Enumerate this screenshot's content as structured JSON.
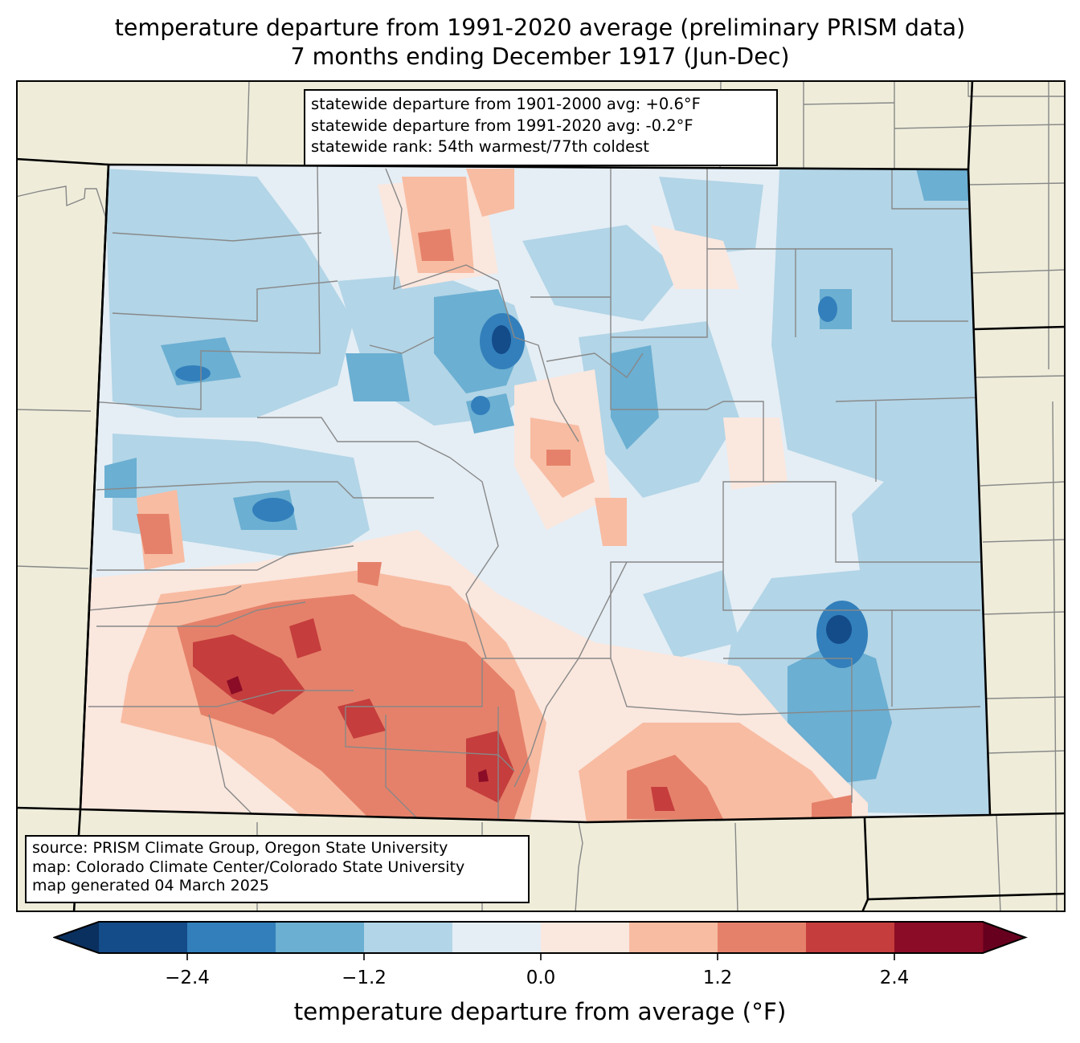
{
  "title": {
    "line1": "temperature departure from 1991-2020 average (preliminary PRISM data)",
    "line2": "7 months ending December 1917 (Jun-Dec)"
  },
  "stats_box": {
    "line1": "statewide departure from 1901-2000 avg: +0.6°F",
    "line2": "statewide departure from 1991-2020 avg: -0.2°F",
    "line3": "statewide rank: 54th warmest/77th coldest"
  },
  "source_box": {
    "line1": "source: PRISM Climate Group, Oregon State University",
    "line2": "map: Colorado Climate Center/Colorado State University",
    "line3": "map generated 04 March 2025"
  },
  "colors": {
    "land_outside": "#efedda",
    "county_line": "#888888",
    "state_line": "#000000"
  },
  "chart_data": {
    "type": "heatmap",
    "title": "temperature departure from 1991-2020 average (preliminary PRISM data)",
    "subtitle": "7 months ending December 1917 (Jun-Dec)",
    "region": "Colorado",
    "colorbar": {
      "label": "temperature departure from average (°F)",
      "levels": [
        -3.0,
        -2.4,
        -1.8,
        -1.2,
        -0.6,
        0.0,
        0.6,
        1.2,
        1.8,
        2.4,
        3.0
      ],
      "colors": [
        "#144b89",
        "#327fbb",
        "#6bafd2",
        "#b2d5e7",
        "#e5eef5",
        "#fae7de",
        "#f8bca2",
        "#e5816a",
        "#c53d3d",
        "#8b0c26"
      ],
      "under_color": "#0a305f",
      "over_color": "#67001f",
      "extend": "both",
      "ticks": [
        -2.4,
        -1.2,
        0.0,
        1.2,
        2.4
      ],
      "tick_labels": [
        "−2.4",
        "−1.2",
        "0.0",
        "1.2",
        "2.4"
      ]
    }
  }
}
